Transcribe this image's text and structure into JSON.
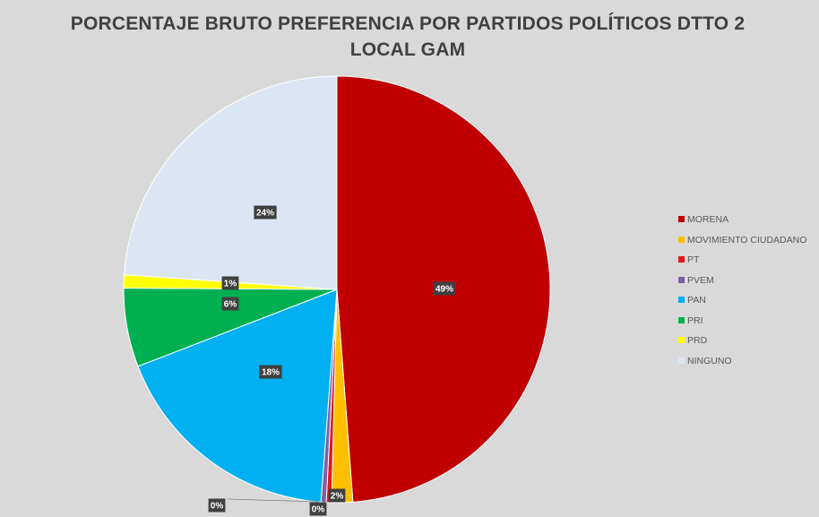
{
  "chart_data": {
    "type": "pie",
    "title": "PORCENTAJE BRUTO PREFERENCIA POR PARTIDOS POLÍTICOS DTTO 2 LOCAL GAM",
    "legend_position": "right",
    "slices": [
      {
        "name": "MORENA",
        "value": 49,
        "label": "49%",
        "color": "#c00000"
      },
      {
        "name": "MOVIMIENTO CIUDADANO",
        "value": 1.6,
        "label": "2%",
        "color": "#ffc000"
      },
      {
        "name": "PT",
        "value": 0.4,
        "label": "0%",
        "color": "#e31a1c"
      },
      {
        "name": "PVEM",
        "value": 0.4,
        "label": "0%",
        "color": "#7f5fa8"
      },
      {
        "name": "PAN",
        "value": 18,
        "label": "18%",
        "color": "#00b0f0"
      },
      {
        "name": "PRI",
        "value": 6,
        "label": "6%",
        "color": "#00b050"
      },
      {
        "name": "PRD",
        "value": 1,
        "label": "1%",
        "color": "#ffff00"
      },
      {
        "name": "NINGUNO",
        "value": 24,
        "label": "24%",
        "color": "#dce6f2"
      }
    ]
  }
}
